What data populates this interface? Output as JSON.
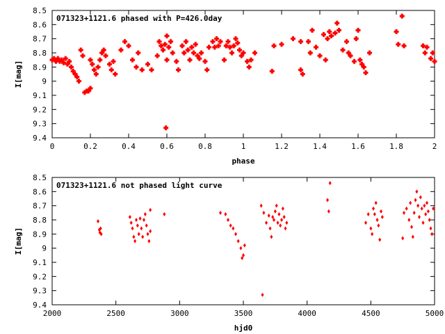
{
  "colors": {
    "points": "#ff0000",
    "axes": "#000000",
    "background": "#ffffff"
  },
  "chart_data": [
    {
      "type": "scatter",
      "title": "071323+1121.6 phased with P=426.0day",
      "xlabel": "phase",
      "ylabel": "I[mag]",
      "xlim": [
        0,
        2
      ],
      "ylim": [
        8.5,
        9.4
      ],
      "y_inverted": true,
      "xticks": [
        0,
        0.2,
        0.4,
        0.6,
        0.8,
        1,
        1.2,
        1.4,
        1.6,
        1.8,
        2
      ],
      "xtick_labels": [
        "0",
        "0.2",
        "0.4",
        "0.6",
        "0.8",
        "1",
        "1.2",
        "1.4",
        "1.6",
        "1.8",
        "2"
      ],
      "yticks": [
        8.5,
        8.6,
        8.7,
        8.8,
        8.9,
        9,
        9.1,
        9.2,
        9.3,
        9.4
      ],
      "ytick_labels": [
        "8.5",
        "8.6",
        "8.7",
        "8.8",
        "8.9",
        "9",
        "9.1",
        "9.2",
        "9.3",
        "9.4"
      ],
      "grid": false,
      "marker": "cross",
      "series": [
        {
          "points": [
            [
              0.0,
              8.85
            ],
            [
              0.01,
              8.84
            ],
            [
              0.02,
              8.86
            ],
            [
              0.03,
              8.84
            ],
            [
              0.04,
              8.86
            ],
            [
              0.05,
              8.85
            ],
            [
              0.06,
              8.87
            ],
            [
              0.07,
              8.84
            ],
            [
              0.08,
              8.88
            ],
            [
              0.09,
              8.86
            ],
            [
              0.1,
              8.9
            ],
            [
              0.11,
              8.93
            ],
            [
              0.12,
              8.95
            ],
            [
              0.13,
              8.97
            ],
            [
              0.14,
              9.0
            ],
            [
              0.15,
              8.78
            ],
            [
              0.16,
              8.82
            ],
            [
              0.17,
              9.08
            ],
            [
              0.18,
              9.07
            ],
            [
              0.19,
              9.07
            ],
            [
              0.2,
              9.05
            ],
            [
              0.2,
              8.85
            ],
            [
              0.21,
              8.88
            ],
            [
              0.22,
              8.92
            ],
            [
              0.23,
              8.95
            ],
            [
              0.24,
              8.9
            ],
            [
              0.25,
              8.85
            ],
            [
              0.26,
              8.8
            ],
            [
              0.27,
              8.78
            ],
            [
              0.28,
              8.82
            ],
            [
              0.3,
              8.88
            ],
            [
              0.31,
              8.92
            ],
            [
              0.32,
              8.86
            ],
            [
              0.33,
              8.95
            ],
            [
              0.36,
              8.78
            ],
            [
              0.38,
              8.72
            ],
            [
              0.4,
              8.75
            ],
            [
              0.42,
              8.85
            ],
            [
              0.44,
              8.9
            ],
            [
              0.45,
              8.8
            ],
            [
              0.47,
              8.92
            ],
            [
              0.5,
              8.88
            ],
            [
              0.52,
              8.92
            ],
            [
              0.55,
              8.82
            ],
            [
              0.56,
              8.72
            ],
            [
              0.57,
              8.75
            ],
            [
              0.58,
              8.78
            ],
            [
              0.59,
              8.74
            ],
            [
              0.6,
              8.68
            ],
            [
              0.6,
              8.85
            ],
            [
              0.595,
              9.33
            ],
            [
              0.61,
              8.76
            ],
            [
              0.62,
              8.72
            ],
            [
              0.63,
              8.8
            ],
            [
              0.65,
              8.86
            ],
            [
              0.66,
              8.92
            ],
            [
              0.68,
              8.75
            ],
            [
              0.69,
              8.8
            ],
            [
              0.7,
              8.72
            ],
            [
              0.71,
              8.78
            ],
            [
              0.72,
              8.85
            ],
            [
              0.73,
              8.76
            ],
            [
              0.74,
              8.8
            ],
            [
              0.75,
              8.74
            ],
            [
              0.76,
              8.82
            ],
            [
              0.77,
              8.84
            ],
            [
              0.78,
              8.8
            ],
            [
              0.8,
              8.86
            ],
            [
              0.81,
              8.92
            ],
            [
              0.82,
              8.76
            ],
            [
              0.84,
              8.72
            ],
            [
              0.85,
              8.76
            ],
            [
              0.86,
              8.7
            ],
            [
              0.87,
              8.75
            ],
            [
              0.88,
              8.72
            ],
            [
              0.9,
              8.85
            ],
            [
              0.91,
              8.75
            ],
            [
              0.92,
              8.72
            ],
            [
              0.93,
              8.76
            ],
            [
              0.94,
              8.8
            ],
            [
              0.95,
              8.75
            ],
            [
              0.96,
              8.7
            ],
            [
              0.97,
              8.73
            ],
            [
              0.98,
              8.78
            ],
            [
              0.99,
              8.82
            ],
            [
              1.0,
              8.8
            ],
            [
              1.02,
              8.86
            ],
            [
              1.03,
              8.9
            ],
            [
              1.04,
              8.85
            ],
            [
              1.06,
              8.8
            ],
            [
              1.15,
              8.93
            ],
            [
              1.16,
              8.75
            ],
            [
              1.2,
              8.74
            ],
            [
              1.26,
              8.7
            ],
            [
              1.3,
              8.72
            ],
            [
              1.3,
              8.92
            ],
            [
              1.31,
              8.95
            ],
            [
              1.34,
              8.72
            ],
            [
              1.35,
              8.8
            ],
            [
              1.36,
              8.64
            ],
            [
              1.38,
              8.76
            ],
            [
              1.4,
              8.82
            ],
            [
              1.42,
              8.67
            ],
            [
              1.43,
              8.85
            ],
            [
              1.44,
              8.7
            ],
            [
              1.45,
              8.65
            ],
            [
              1.46,
              8.68
            ],
            [
              1.48,
              8.66
            ],
            [
              1.49,
              8.59
            ],
            [
              1.5,
              8.64
            ],
            [
              1.52,
              8.78
            ],
            [
              1.54,
              8.72
            ],
            [
              1.55,
              8.8
            ],
            [
              1.56,
              8.82
            ],
            [
              1.58,
              8.86
            ],
            [
              1.59,
              8.7
            ],
            [
              1.6,
              8.64
            ],
            [
              1.61,
              8.85
            ],
            [
              1.62,
              8.88
            ],
            [
              1.63,
              8.9
            ],
            [
              1.64,
              8.94
            ],
            [
              1.66,
              8.8
            ],
            [
              1.8,
              8.65
            ],
            [
              1.81,
              8.74
            ],
            [
              1.83,
              8.54
            ],
            [
              1.84,
              8.75
            ],
            [
              1.94,
              8.75
            ],
            [
              1.95,
              8.8
            ],
            [
              1.96,
              8.76
            ],
            [
              1.98,
              8.84
            ],
            [
              1.99,
              8.8
            ],
            [
              2.0,
              8.86
            ]
          ]
        }
      ]
    },
    {
      "type": "scatter",
      "title": "071323+1121.6 not phased light curve",
      "xlabel": "hjd0",
      "ylabel": "I[mag]",
      "xlim": [
        2000,
        5000
      ],
      "ylim": [
        8.5,
        9.4
      ],
      "y_inverted": true,
      "xticks": [
        2000,
        2500,
        3000,
        3500,
        4000,
        4500,
        5000
      ],
      "xtick_labels": [
        "2000",
        "2500",
        "3000",
        "3500",
        "4000",
        "4500",
        "5000"
      ],
      "yticks": [
        8.5,
        8.6,
        8.7,
        8.8,
        8.9,
        9,
        9.1,
        9.2,
        9.3,
        9.4
      ],
      "ytick_labels": [
        "8.5",
        "8.6",
        "8.7",
        "8.8",
        "8.9",
        "9",
        "9.1",
        "9.2",
        "9.3",
        "9.4"
      ],
      "grid": false,
      "marker": "diamond",
      "series": [
        {
          "points": [
            [
              2360,
              8.81
            ],
            [
              2370,
              8.87
            ],
            [
              2375,
              8.89
            ],
            [
              2380,
              8.86
            ],
            [
              2385,
              8.9
            ],
            [
              2610,
              8.78
            ],
            [
              2620,
              8.82
            ],
            [
              2630,
              8.86
            ],
            [
              2640,
              8.92
            ],
            [
              2650,
              8.95
            ],
            [
              2660,
              8.8
            ],
            [
              2670,
              8.84
            ],
            [
              2680,
              8.9
            ],
            [
              2690,
              8.79
            ],
            [
              2700,
              8.86
            ],
            [
              2710,
              8.92
            ],
            [
              2720,
              8.8
            ],
            [
              2730,
              8.76
            ],
            [
              2740,
              8.84
            ],
            [
              2750,
              8.9
            ],
            [
              2760,
              8.95
            ],
            [
              2770,
              8.88
            ],
            [
              2770,
              8.73
            ],
            [
              2880,
              8.76
            ],
            [
              3320,
              8.75
            ],
            [
              3360,
              8.76
            ],
            [
              3380,
              8.8
            ],
            [
              3400,
              8.84
            ],
            [
              3420,
              8.86
            ],
            [
              3440,
              8.9
            ],
            [
              3460,
              8.95
            ],
            [
              3480,
              9.0
            ],
            [
              3490,
              9.07
            ],
            [
              3500,
              9.05
            ],
            [
              3510,
              8.98
            ],
            [
              3640,
              8.7
            ],
            [
              3650,
              9.33
            ],
            [
              3660,
              8.75
            ],
            [
              3680,
              8.82
            ],
            [
              3700,
              8.77
            ],
            [
              3710,
              8.86
            ],
            [
              3720,
              8.92
            ],
            [
              3730,
              8.78
            ],
            [
              3740,
              8.8
            ],
            [
              3750,
              8.74
            ],
            [
              3760,
              8.7
            ],
            [
              3770,
              8.82
            ],
            [
              3780,
              8.76
            ],
            [
              3790,
              8.84
            ],
            [
              3800,
              8.8
            ],
            [
              3810,
              8.72
            ],
            [
              3820,
              8.78
            ],
            [
              3830,
              8.86
            ],
            [
              3840,
              8.82
            ],
            [
              4160,
              8.66
            ],
            [
              4170,
              8.74
            ],
            [
              4180,
              8.54
            ],
            [
              4460,
              8.82
            ],
            [
              4480,
              8.76
            ],
            [
              4500,
              8.86
            ],
            [
              4510,
              8.9
            ],
            [
              4520,
              8.72
            ],
            [
              4530,
              8.76
            ],
            [
              4540,
              8.68
            ],
            [
              4550,
              8.8
            ],
            [
              4560,
              8.84
            ],
            [
              4570,
              8.94
            ],
            [
              4580,
              8.74
            ],
            [
              4590,
              8.78
            ],
            [
              4750,
              8.93
            ],
            [
              4760,
              8.75
            ],
            [
              4780,
              8.72
            ],
            [
              4800,
              8.8
            ],
            [
              4810,
              8.68
            ],
            [
              4820,
              8.85
            ],
            [
              4830,
              8.92
            ],
            [
              4840,
              8.75
            ],
            [
              4850,
              8.66
            ],
            [
              4860,
              8.6
            ],
            [
              4870,
              8.7
            ],
            [
              4880,
              8.78
            ],
            [
              4890,
              8.64
            ],
            [
              4900,
              8.72
            ],
            [
              4910,
              8.82
            ],
            [
              4920,
              8.7
            ],
            [
              4930,
              8.76
            ],
            [
              4940,
              8.68
            ],
            [
              4950,
              8.74
            ],
            [
              4960,
              8.8
            ],
            [
              4970,
              8.86
            ],
            [
              4980,
              8.9
            ],
            [
              4990,
              8.72
            ]
          ]
        }
      ]
    }
  ]
}
